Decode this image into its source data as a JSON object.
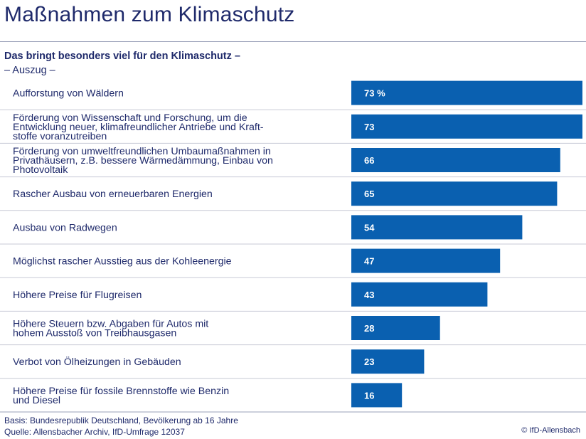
{
  "title": "Maßnahmen zum Klimaschutz",
  "subtitle": "Das bringt besonders viel für den Klimaschutz –",
  "note": "– Auszug –",
  "footer": {
    "basis": "Basis: Bundesrepublik Deutschland, Bevölkerung ab 16 Jahre",
    "source": "Quelle: Allensbacher Archiv, IfD-Umfrage 12037",
    "credit": "© IfD-Allensbach"
  },
  "colors": {
    "bar": "#0a60b0",
    "text": "#1f2a6b",
    "divider": "#c7cad6",
    "bar_label": "#ffffff"
  },
  "chart_data": {
    "type": "bar",
    "orientation": "horizontal",
    "unit": "%",
    "categories": [
      [
        "Aufforstung von Wäldern"
      ],
      [
        "Förderung von Wissenschaft und Forschung, um die",
        "Entwicklung neuer, klimafreundlicher Antriebe und Kraft-",
        "stoffe voranzutreiben"
      ],
      [
        "Förderung von umweltfreundlichen Umbaumaßnahmen in",
        "Privathäusern, z.B. bessere Wärmedämmung, Einbau von",
        "Photovoltaik"
      ],
      [
        "Rascher Ausbau von erneuerbaren Energien"
      ],
      [
        "Ausbau von Radwegen"
      ],
      [
        "Möglichst rascher Ausstieg aus der Kohleenergie"
      ],
      [
        "Höhere Preise für Flugreisen"
      ],
      [
        "Höhere Steuern bzw. Abgaben für Autos mit",
        "hohem Ausstoß von Treibhausgasen"
      ],
      [
        "Verbot von Ölheizungen in Gebäuden"
      ],
      [
        "Höhere Preise für fossile Brennstoffe wie Benzin",
        "und Diesel"
      ]
    ],
    "values": [
      73,
      73,
      66,
      65,
      54,
      47,
      43,
      28,
      23,
      16
    ],
    "value_labels": [
      "73 %",
      "73",
      "66",
      "65",
      "54",
      "47",
      "43",
      "28",
      "23",
      "16"
    ],
    "xlim": [
      0,
      73
    ]
  }
}
